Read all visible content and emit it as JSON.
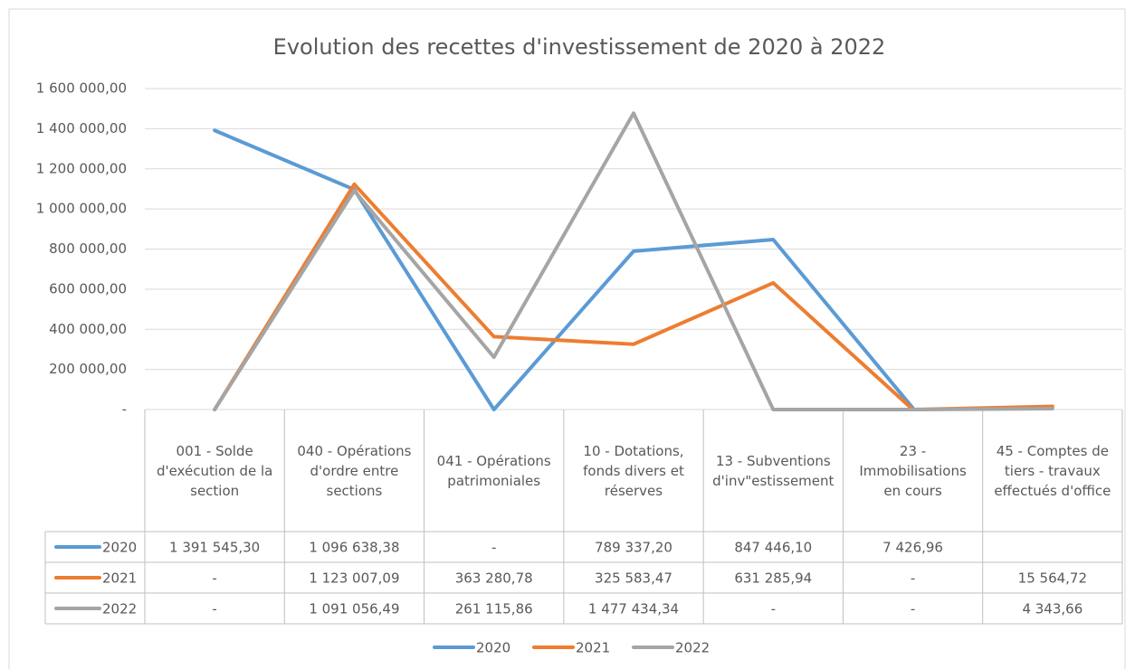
{
  "chart_data": {
    "type": "line",
    "title": "Evolution des recettes d'investissement de 2020 à 2022",
    "categories": [
      "001 - Solde d'exécution de la section",
      "040 - Opérations d'ordre entre sections",
      "041 - Opérations patrimoniales",
      "10 - Dotations, fonds divers et réserves",
      "13 - Subventions d'inv\"estissement",
      "23 - Immobilisations en cours",
      "45 - Comptes de tiers - travaux effectués d'office"
    ],
    "series": [
      {
        "name": "2020",
        "color": "#5b9bd5",
        "values": [
          1391545.3,
          1096638.38,
          0,
          789337.2,
          847446.1,
          7426.96,
          null
        ],
        "value_labels": [
          "1 391 545,30",
          "1 096 638,38",
          "-",
          "789 337,20",
          "847 446,10",
          "7 426,96",
          null
        ]
      },
      {
        "name": "2021",
        "color": "#ed7d31",
        "values": [
          0,
          1123007.09,
          363280.78,
          325583.47,
          631285.94,
          0,
          15564.72
        ],
        "value_labels": [
          "-",
          "1 123 007,09",
          "363 280,78",
          "325 583,47",
          "631 285,94",
          "-",
          "15 564,72"
        ]
      },
      {
        "name": "2022",
        "color": "#a5a5a5",
        "values": [
          0,
          1091056.49,
          261115.86,
          1477434.34,
          0,
          0,
          4343.66
        ],
        "value_labels": [
          "-",
          "1 091 056,49",
          "261 115,86",
          "1 477 434,34",
          "-",
          "-",
          "4 343,66"
        ]
      }
    ],
    "ylim": [
      0,
      1600000
    ],
    "yticks": [
      {
        "value": 0,
        "label": "-"
      },
      {
        "value": 200000,
        "label": "200 000,00"
      },
      {
        "value": 400000,
        "label": "400 000,00"
      },
      {
        "value": 600000,
        "label": "600 000,00"
      },
      {
        "value": 800000,
        "label": "800 000,00"
      },
      {
        "value": 1000000,
        "label": "1 000 000,00"
      },
      {
        "value": 1200000,
        "label": "1 200 000,00"
      },
      {
        "value": 1400000,
        "label": "1 400 000,00"
      },
      {
        "value": 1600000,
        "label": "1 600 000,00"
      }
    ],
    "grid": true,
    "legend": "bottom"
  }
}
